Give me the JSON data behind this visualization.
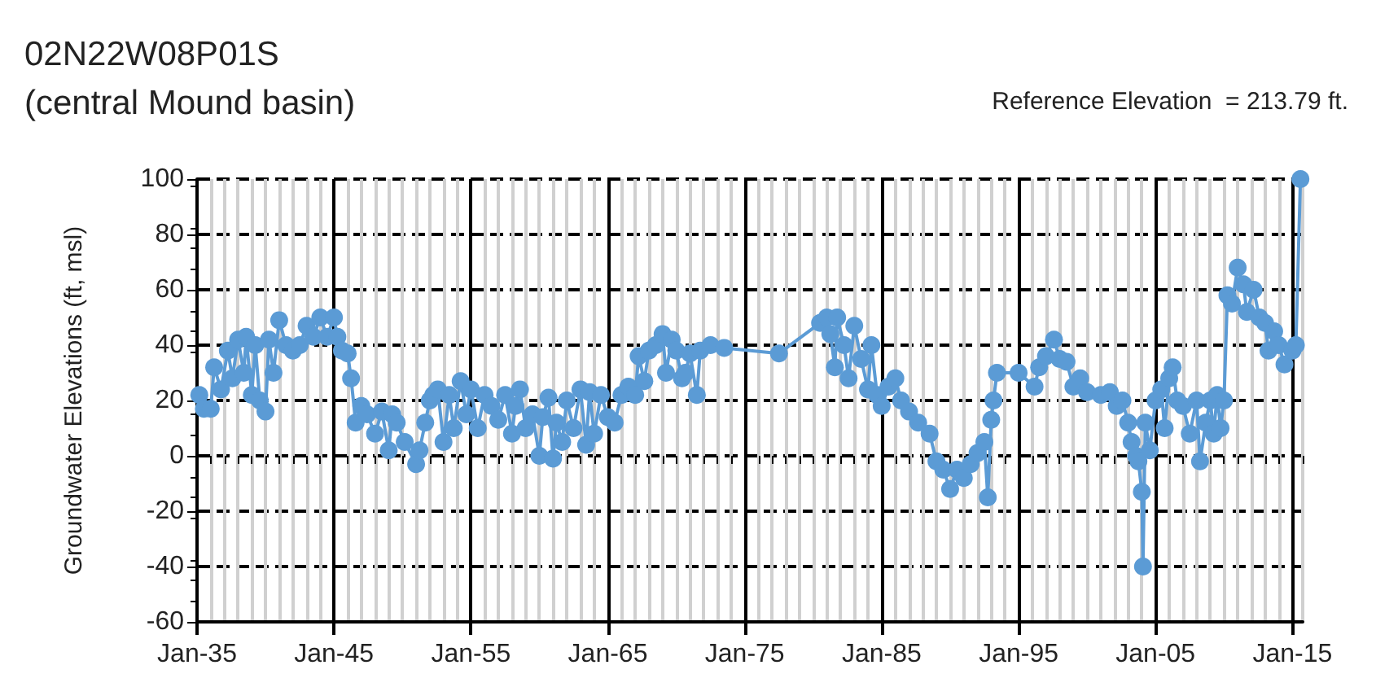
{
  "chart_data": {
    "type": "line",
    "title": "02N22W08P01S",
    "subtitle": "(central Mound basin)",
    "ylabel": "Groundwater Elevations (ft, msl)",
    "annotations": [
      "Reference Elevation  = 213.79 ft."
    ],
    "marker": "circle",
    "line_style": "solid",
    "grid": true,
    "xlim": [
      "1935-01",
      "2015-10"
    ],
    "xticks": [
      {
        "value": "1935-01",
        "label": "Jan-35"
      },
      {
        "value": "1945-01",
        "label": "Jan-45"
      },
      {
        "value": "1955-01",
        "label": "Jan-55"
      },
      {
        "value": "1965-01",
        "label": "Jan-65"
      },
      {
        "value": "1975-01",
        "label": "Jan-75"
      },
      {
        "value": "1985-01",
        "label": "Jan-85"
      },
      {
        "value": "1995-01",
        "label": "Jan-95"
      },
      {
        "value": "2005-01",
        "label": "Jan-05"
      },
      {
        "value": "2015-01",
        "label": "Jan-15"
      }
    ],
    "ylim": [
      -60,
      100
    ],
    "yticks": [
      -60,
      -40,
      -20,
      0,
      20,
      40,
      60,
      80,
      100
    ],
    "series": [
      {
        "color": "#5b9bd5",
        "x": [
          "1935-03",
          "1935-07",
          "1936-01",
          "1936-04",
          "1936-10",
          "1937-04",
          "1937-08",
          "1938-01",
          "1938-06",
          "1938-08",
          "1939-01",
          "1939-04",
          "1939-08",
          "1940-01",
          "1940-04",
          "1940-08",
          "1941-01",
          "1941-07",
          "1942-01",
          "1942-07",
          "1943-01",
          "1943-07",
          "1944-01",
          "1944-07",
          "1945-01",
          "1945-04",
          "1945-08",
          "1946-01",
          "1946-04",
          "1946-08",
          "1947-01",
          "1947-06",
          "1948-01",
          "1948-07",
          "1949-01",
          "1949-04",
          "1949-08",
          "1950-03",
          "1951-01",
          "1951-04",
          "1951-09",
          "1952-01",
          "1952-04",
          "1952-08",
          "1953-01",
          "1953-06",
          "1953-10",
          "1954-04",
          "1954-09",
          "1955-01",
          "1955-07",
          "1956-01",
          "1956-07",
          "1957-01",
          "1957-07",
          "1958-01",
          "1958-04",
          "1958-08",
          "1959-01",
          "1959-07",
          "1960-01",
          "1960-04",
          "1960-09",
          "1961-01",
          "1961-04",
          "1961-09",
          "1962-01",
          "1962-07",
          "1963-01",
          "1963-06",
          "1963-09",
          "1964-01",
          "1964-07",
          "1965-01",
          "1965-07",
          "1966-01",
          "1966-07",
          "1967-01",
          "1967-04",
          "1967-09",
          "1968-01",
          "1968-07",
          "1969-01",
          "1969-04",
          "1969-09",
          "1970-01",
          "1970-06",
          "1970-09",
          "1971-01",
          "1971-07",
          "1971-10",
          "1972-07",
          "1973-07",
          "1977-07",
          "1980-07",
          "1981-01",
          "1981-04",
          "1981-08",
          "1981-10",
          "1982-04",
          "1982-08",
          "1983-01",
          "1983-07",
          "1984-01",
          "1984-04",
          "1984-09",
          "1985-01",
          "1985-07",
          "1986-01",
          "1986-06",
          "1987-01",
          "1987-09",
          "1988-07",
          "1989-01",
          "1989-07",
          "1990-01",
          "1990-07",
          "1991-01",
          "1991-07",
          "1992-01",
          "1992-07",
          "1992-10",
          "1993-01",
          "1993-03",
          "1993-06",
          "1995-01",
          "1996-03",
          "1996-07",
          "1997-01",
          "1997-08",
          "1998-01",
          "1998-07",
          "1999-01",
          "1999-07",
          "2000-01",
          "2001-01",
          "2001-09",
          "2002-03",
          "2002-08",
          "2003-01",
          "2003-04",
          "2003-08",
          "2003-10",
          "2004-01",
          "2004-02",
          "2004-04",
          "2004-08",
          "2005-01",
          "2005-06",
          "2005-09",
          "2006-01",
          "2006-04",
          "2006-08",
          "2007-01",
          "2007-07",
          "2008-01",
          "2008-04",
          "2008-09",
          "2009-01",
          "2009-04",
          "2009-07",
          "2009-10",
          "2010-01",
          "2010-04",
          "2010-08",
          "2011-01",
          "2011-06",
          "2011-09",
          "2012-03",
          "2012-08",
          "2013-01",
          "2013-04",
          "2013-09",
          "2014-01",
          "2014-06",
          "2015-01",
          "2015-04",
          "2015-08"
        ],
        "values": [
          22,
          17,
          17,
          32,
          24,
          38,
          28,
          42,
          30,
          43,
          22,
          40,
          20,
          16,
          42,
          30,
          49,
          40,
          38,
          40,
          47,
          43,
          50,
          43,
          50,
          43,
          38,
          37,
          28,
          12,
          18,
          15,
          8,
          16,
          2,
          15,
          12,
          5,
          -3,
          2,
          12,
          20,
          22,
          24,
          5,
          22,
          10,
          27,
          15,
          24,
          10,
          22,
          18,
          13,
          22,
          8,
          18,
          24,
          10,
          15,
          0,
          14,
          21,
          -1,
          12,
          5,
          20,
          10,
          24,
          4,
          23,
          8,
          22,
          14,
          12,
          22,
          25,
          22,
          36,
          27,
          38,
          40,
          44,
          30,
          42,
          38,
          28,
          30,
          37,
          22,
          38,
          40,
          39,
          37,
          48,
          50,
          44,
          32,
          50,
          40,
          28,
          47,
          35,
          24,
          40,
          22,
          18,
          25,
          28,
          20,
          16,
          12,
          8,
          -2,
          -5,
          -12,
          -5,
          -8,
          -3,
          1,
          5,
          -15,
          13,
          20,
          30,
          30,
          25,
          32,
          36,
          42,
          35,
          34,
          25,
          28,
          23,
          22,
          23,
          18,
          20,
          12,
          5,
          0,
          -2,
          -13,
          -40,
          12,
          2,
          20,
          24,
          10,
          28,
          32,
          20,
          18,
          8,
          20,
          -2,
          12,
          20,
          8,
          22,
          10,
          20,
          58,
          55,
          68,
          62,
          52,
          60,
          50,
          48,
          38,
          45,
          40,
          33,
          38,
          40,
          100
        ]
      }
    ]
  }
}
